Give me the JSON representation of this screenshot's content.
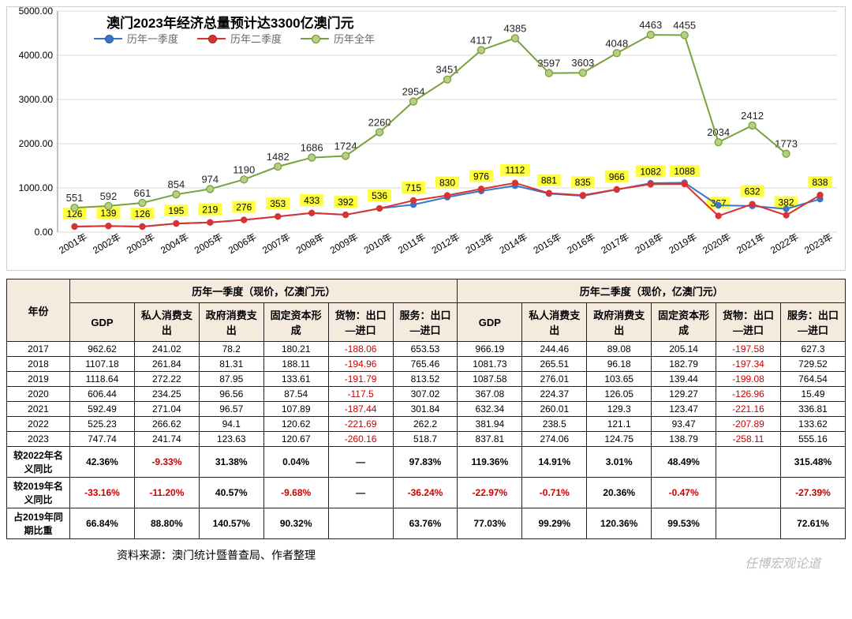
{
  "chart": {
    "title": "澳门2023年经济总量预计达3300亿澳门元",
    "legend": {
      "q1": "历年一季度",
      "q2": "历年二季度",
      "annual": "历年全年"
    },
    "colors": {
      "q1": "#3a76c6",
      "q2": "#d93232",
      "annual_line": "#7aa23a",
      "annual_marker": "#b5cf86",
      "grid": "#d9d9d9",
      "axis": "#888888",
      "highlight": "#ffff40"
    },
    "ylim": [
      0,
      5000
    ],
    "ytick_step": 1000,
    "ytick_labels": [
      "0.00",
      "1000.00",
      "2000.00",
      "3000.00",
      "4000.00",
      "5000.00"
    ],
    "years": [
      "2001年",
      "2002年",
      "2003年",
      "2004年",
      "2005年",
      "2006年",
      "2007年",
      "2008年",
      "2009年",
      "2010年",
      "2011年",
      "2012年",
      "2013年",
      "2014年",
      "2015年",
      "2016年",
      "2017年",
      "2018年",
      "2019年",
      "2020年",
      "2021年",
      "2022年",
      "2023年"
    ],
    "annual_vals": [
      551,
      592,
      661,
      854,
      974,
      1190,
      1482,
      1686,
      1724,
      2260,
      2954,
      3451,
      4117,
      4385,
      3597,
      3603,
      4048,
      4463,
      4455,
      2034,
      2412,
      1773,
      null
    ],
    "q1_vals": [
      126,
      139,
      126,
      195,
      219,
      276,
      353,
      433,
      392,
      536,
      620,
      790,
      930,
      1050,
      870,
      820,
      962,
      1107,
      1118,
      606,
      592,
      525,
      747
    ],
    "q2_vals": [
      126,
      139,
      126,
      195,
      219,
      276,
      353,
      433,
      392,
      536,
      715,
      830,
      976,
      1112,
      881,
      835,
      966,
      1082,
      1088,
      367,
      632,
      382,
      838
    ],
    "hl_labels": [
      126,
      139,
      126,
      195,
      219,
      276,
      353,
      433,
      392,
      536,
      715,
      830,
      976,
      1112,
      881,
      835,
      966,
      1082,
      1088,
      367,
      632,
      382,
      838
    ]
  },
  "table": {
    "sect_q1": "历年一季度（现价，亿澳门元）",
    "sect_q2": "历年二季度（现价，亿澳门元）",
    "cols": [
      "年份",
      "GDP",
      "私人消费支出",
      "政府消费支出",
      "固定资本形成",
      "货物：出口—进口",
      "服务：出口—进口",
      "GDP",
      "私人消费支出",
      "政府消费支出",
      "固定资本形成",
      "货物：出口—进口",
      "服务：出口—进口"
    ],
    "rows": [
      [
        "2017",
        "962.62",
        "241.02",
        "78.2",
        "180.21",
        "-188.06",
        "653.53",
        "966.19",
        "244.46",
        "89.08",
        "205.14",
        "-197.58",
        "627.3"
      ],
      [
        "2018",
        "1107.18",
        "261.84",
        "81.31",
        "188.11",
        "-194.96",
        "765.46",
        "1081.73",
        "265.51",
        "96.18",
        "182.79",
        "-197.34",
        "729.52"
      ],
      [
        "2019",
        "1118.64",
        "272.22",
        "87.95",
        "133.61",
        "-191.79",
        "813.52",
        "1087.58",
        "276.01",
        "103.65",
        "139.44",
        "-199.08",
        "764.54"
      ],
      [
        "2020",
        "606.44",
        "234.25",
        "96.56",
        "87.54",
        "-117.5",
        "307.02",
        "367.08",
        "224.37",
        "126.05",
        "129.27",
        "-126.96",
        "15.49"
      ],
      [
        "2021",
        "592.49",
        "271.04",
        "96.57",
        "107.89",
        "-187.44",
        "301.84",
        "632.34",
        "260.01",
        "129.3",
        "123.47",
        "-221.16",
        "336.81"
      ],
      [
        "2022",
        "525.23",
        "266.62",
        "94.1",
        "120.62",
        "-221.69",
        "262.2",
        "381.94",
        "238.5",
        "121.1",
        "93.47",
        "-207.89",
        "133.62"
      ],
      [
        "2023",
        "747.74",
        "241.74",
        "123.63",
        "120.67",
        "-260.16",
        "518.7",
        "837.81",
        "274.06",
        "124.75",
        "138.79",
        "-258.11",
        "555.16"
      ]
    ],
    "bold_rows": [
      [
        "较2022年名义同比",
        "42.36%",
        "-9.33%",
        "31.38%",
        "0.04%",
        "—",
        "97.83%",
        "119.36%",
        "14.91%",
        "3.01%",
        "48.49%",
        "",
        "315.48%"
      ],
      [
        "较2019年名义同比",
        "-33.16%",
        "-11.20%",
        "40.57%",
        "-9.68%",
        "—",
        "-36.24%",
        "-22.97%",
        "-0.71%",
        "20.36%",
        "-0.47%",
        "",
        "-27.39%"
      ],
      [
        "占2019年同期比重",
        "66.84%",
        "88.80%",
        "140.57%",
        "90.32%",
        "",
        "63.76%",
        "77.03%",
        "99.29%",
        "120.36%",
        "99.53%",
        "",
        "72.61%"
      ]
    ]
  },
  "source": "资料来源：澳门统计暨普查局、作者整理",
  "watermark": "任博宏观论道"
}
